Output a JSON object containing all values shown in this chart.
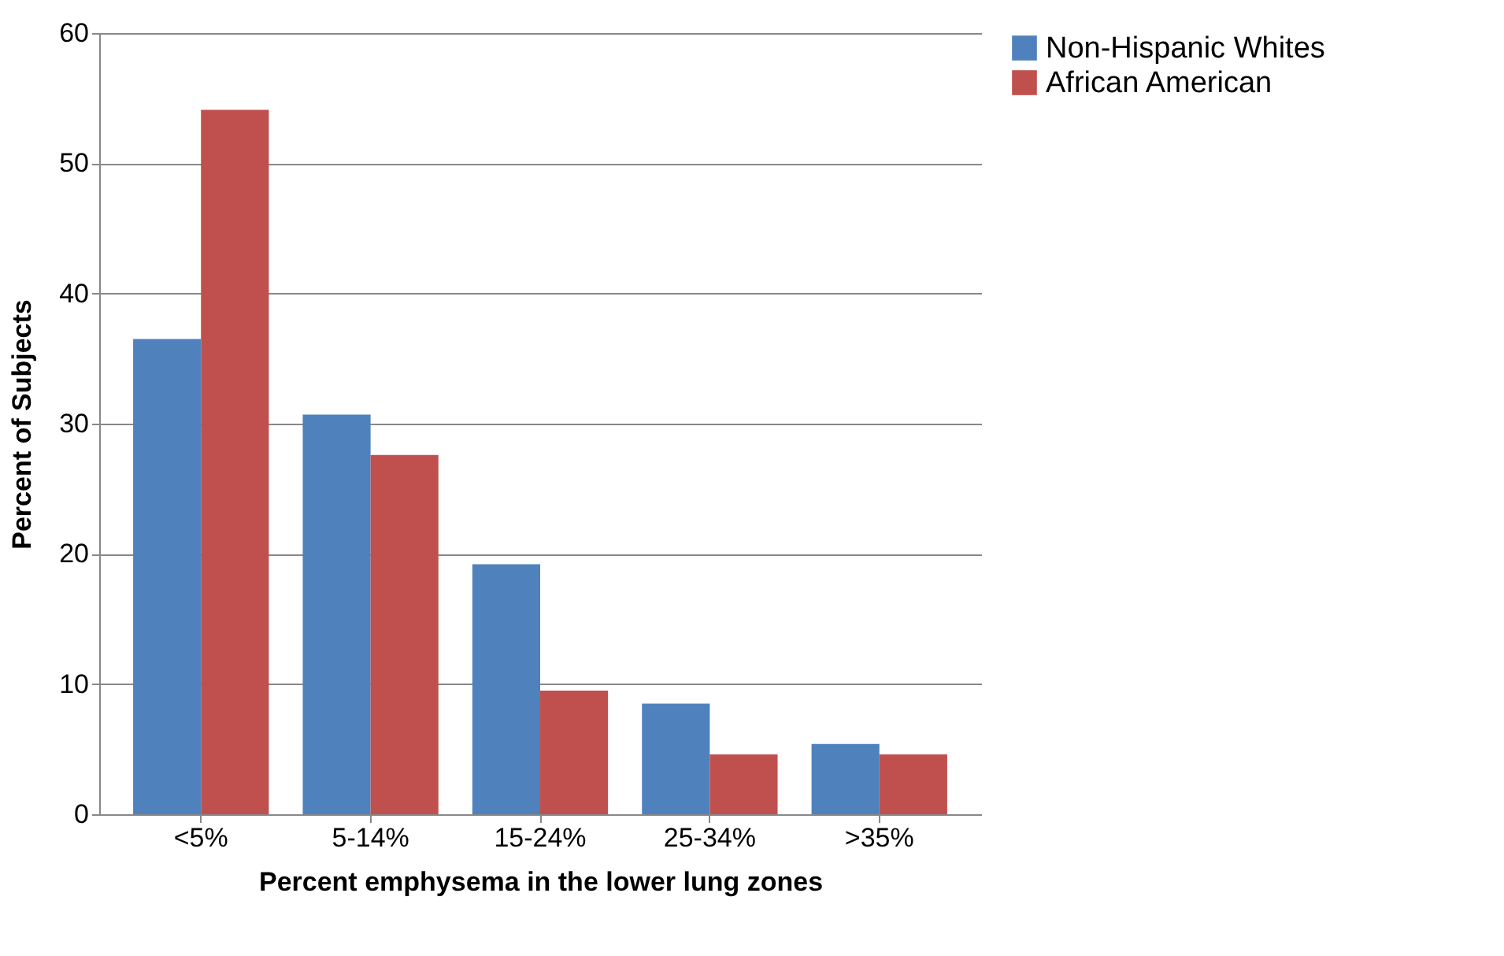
{
  "chart_data": {
    "type": "bar",
    "xlabel": "Percent emphysema in the lower lung zones",
    "ylabel": "Percent of Subjects",
    "categories": [
      "<5%",
      "5-14%",
      "15-24%",
      "25-34%",
      ">35%"
    ],
    "series": [
      {
        "name": "Non-Hispanic Whites",
        "color": "#4f81bd",
        "values": [
          36.5,
          30.7,
          19.2,
          8.5,
          5.4
        ]
      },
      {
        "name": "African American",
        "color": "#c0504d",
        "values": [
          54.1,
          27.6,
          9.5,
          4.6,
          4.6
        ]
      }
    ],
    "ylim": [
      0,
      60
    ],
    "yticks": [
      0,
      10,
      20,
      30,
      40,
      50,
      60
    ],
    "grid": "y",
    "legend": "right"
  }
}
